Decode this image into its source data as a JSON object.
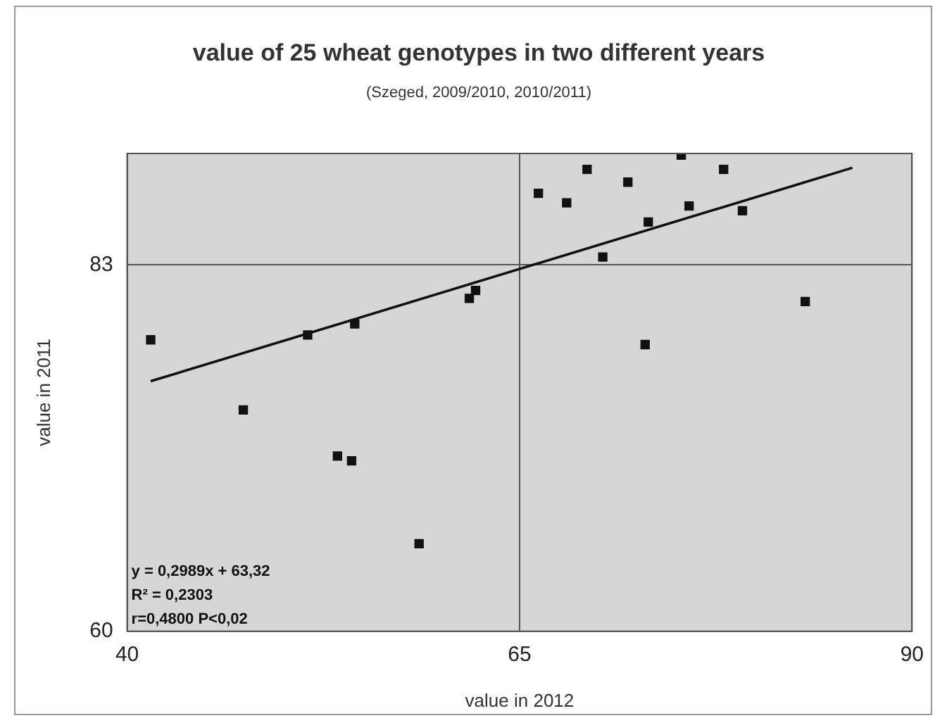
{
  "chart_data": {
    "type": "scatter",
    "title": "value of 25 wheat genotypes in two different years",
    "subtitle": "(Szeged, 2009/2010, 2010/2011)",
    "xlabel": "value in 2012",
    "ylabel": "value in 2011",
    "xlim": [
      40,
      90
    ],
    "xticks": [
      40,
      65,
      90
    ],
    "ylim": [
      60,
      90
    ],
    "yticks": [
      60,
      83
    ],
    "grid": true,
    "marker": "square",
    "legend": false,
    "series": [
      {
        "color": "#111111",
        "x": [
          41.5,
          47.4,
          51.5,
          53.4,
          54.3,
          54.5,
          58.6,
          61.8,
          62.2,
          66.2,
          68.0,
          69.3,
          70.3,
          71.9,
          73.2,
          73.0,
          75.3,
          75.8,
          78.0,
          79.2,
          83.2
        ],
        "values": [
          78.3,
          73.9,
          78.6,
          71.0,
          70.7,
          79.3,
          65.5,
          80.9,
          81.4,
          87.5,
          86.9,
          89.0,
          83.5,
          88.2,
          85.7,
          78.0,
          89.9,
          86.7,
          89.0,
          86.4,
          80.7
        ]
      },
      {
        "type": "line",
        "color": "#111111",
        "marker": "none",
        "x": [
          41.5,
          86.2
        ],
        "values": [
          75.7,
          89.1
        ]
      }
    ],
    "annotations": [
      "y = 0,2989x + 63,32",
      "R² = 0,2303",
      "r=0,4800 P<0,02"
    ]
  }
}
